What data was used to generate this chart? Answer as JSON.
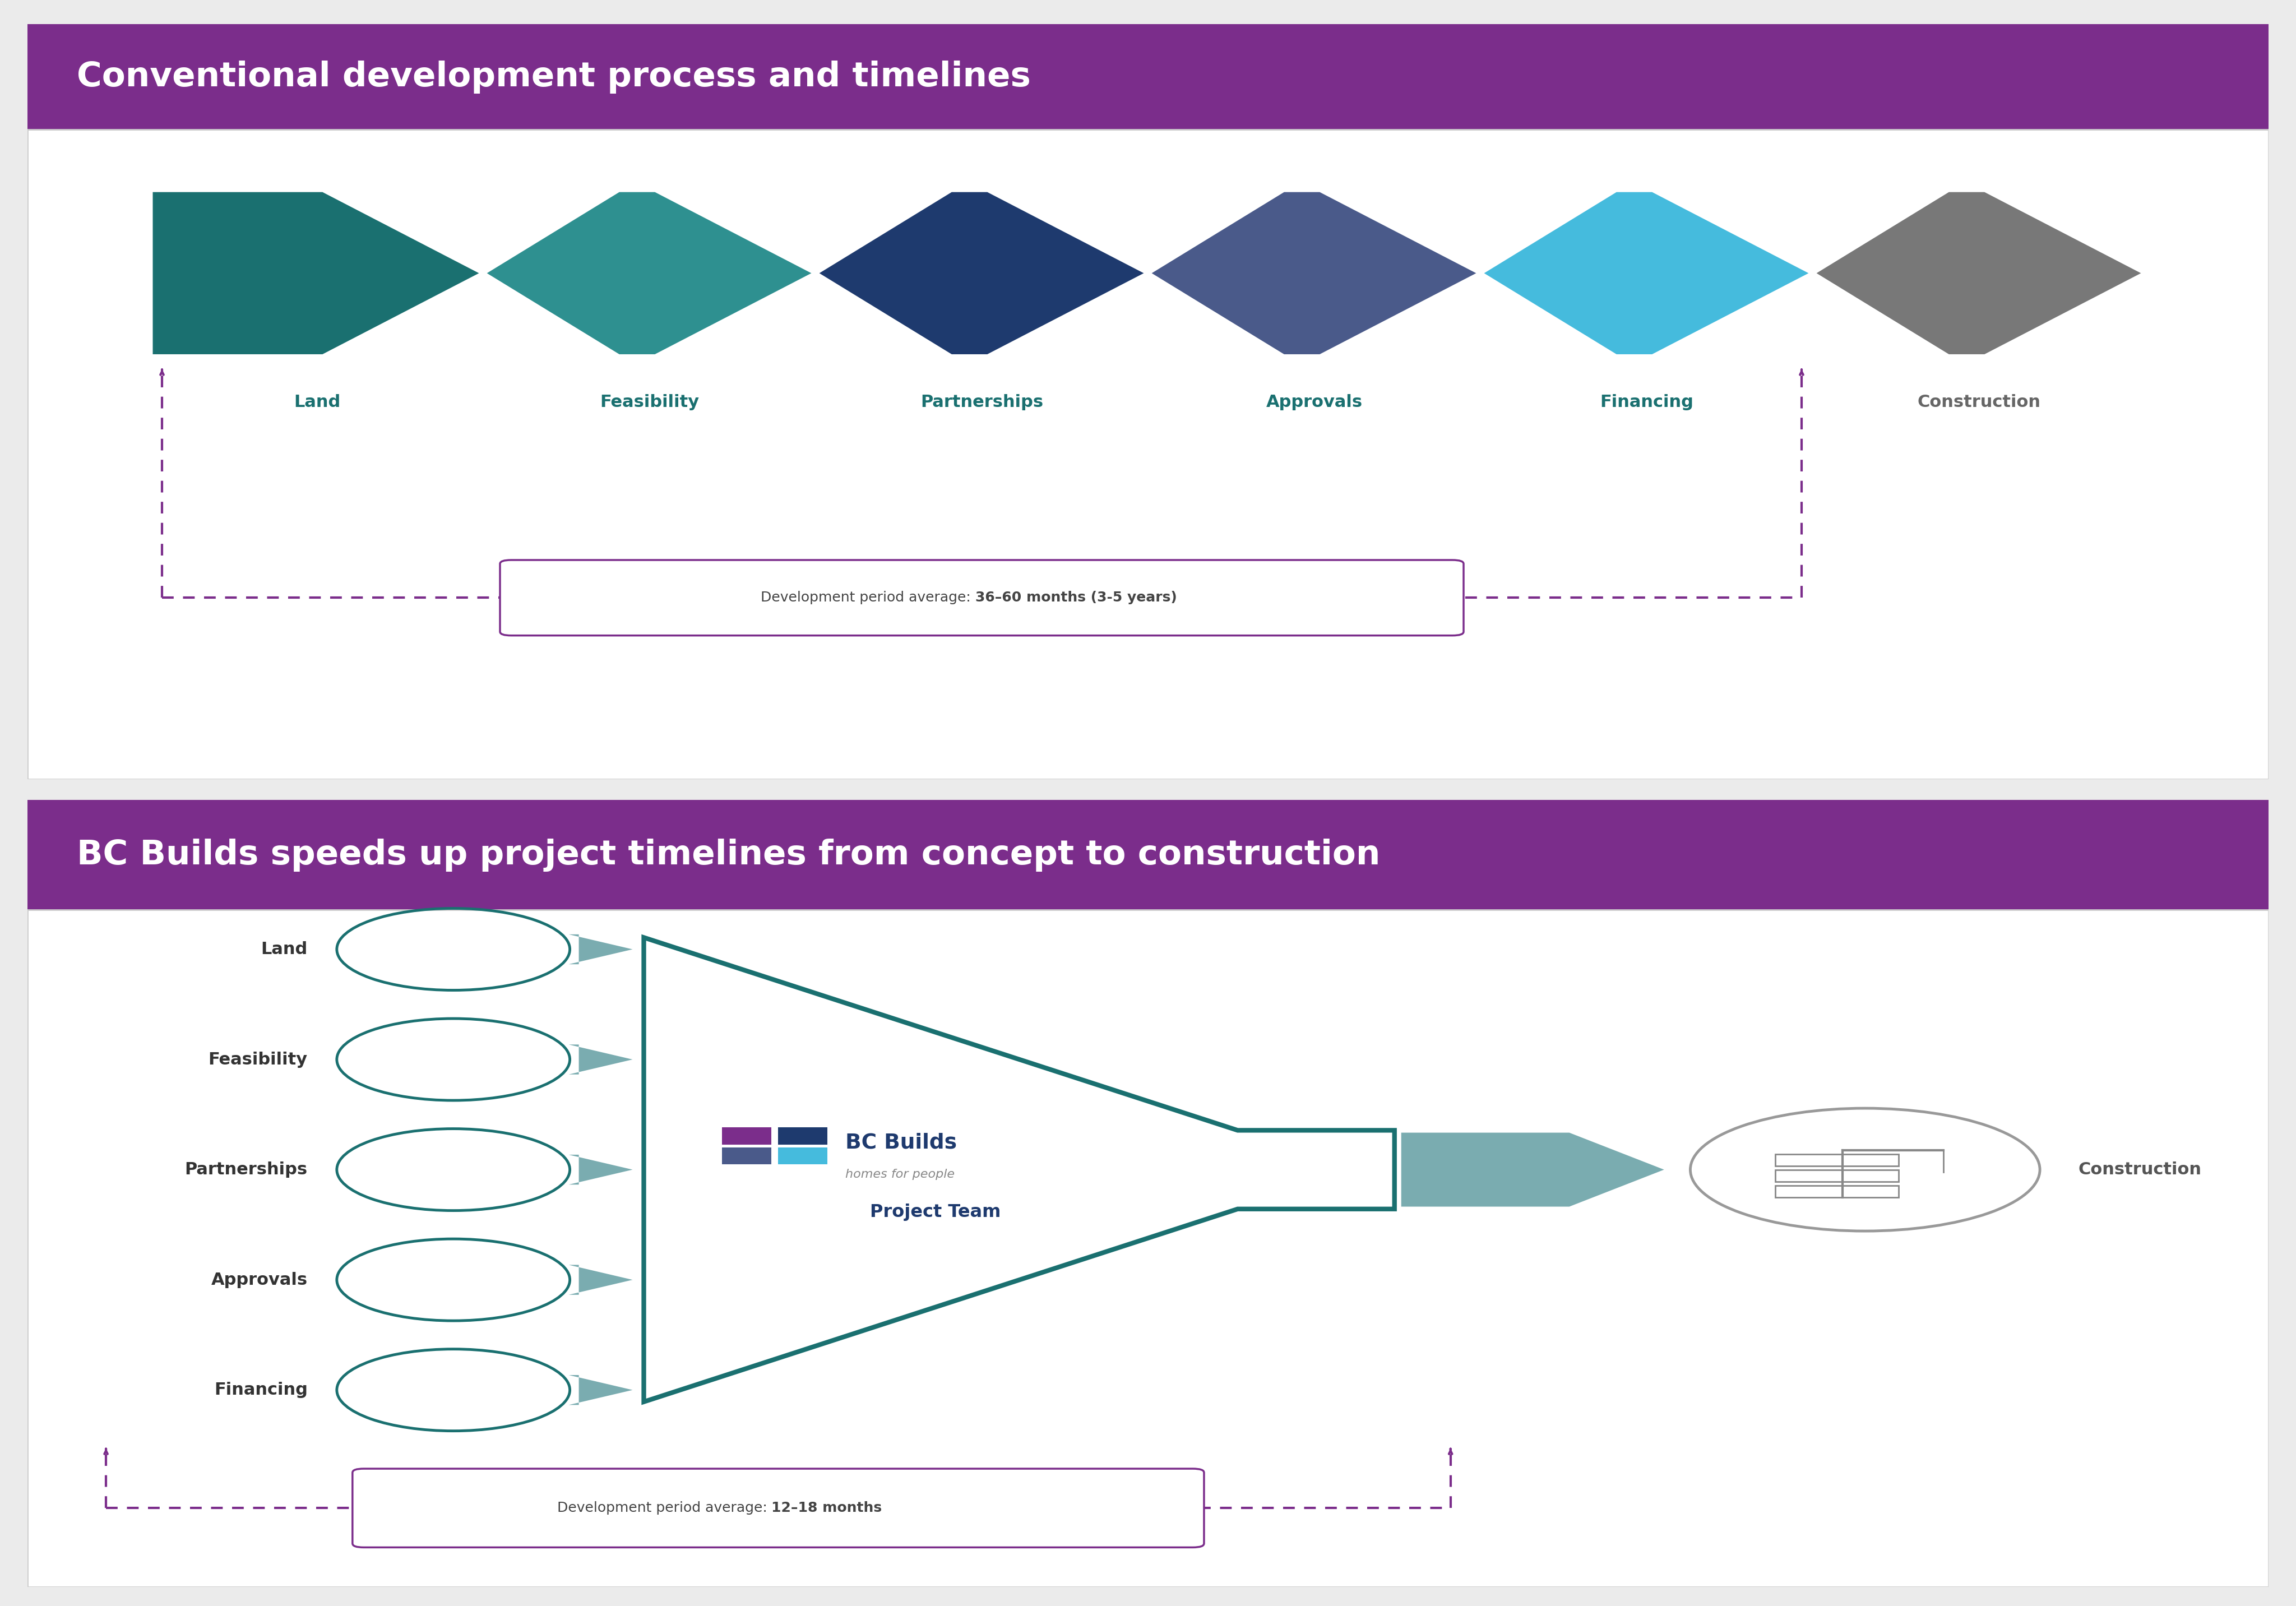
{
  "title1": "Conventional development process and timelines",
  "title2": "BC Builds speeds up project timelines from concept to construction",
  "purple": "#7B2D8B",
  "white": "#FFFFFF",
  "border_gray": "#CCCCCC",
  "teal_dark": "#1A7070",
  "teal_mid": "#2E9090",
  "navy": "#1E3A6E",
  "slate_blue": "#4A5A8A",
  "sky_blue": "#45BBDD",
  "gray_arrow": "#787878",
  "stage_label_teal": "#1A7070",
  "stage_label_gray": "#666666",
  "stages_conv": [
    "Land",
    "Feasibility",
    "Partnerships",
    "Approvals",
    "Financing",
    "Construction"
  ],
  "arrow_colors_conv": [
    "#1A7070",
    "#2E9090",
    "#1E3A6E",
    "#4A5A8A",
    "#45BBDD",
    "#787878"
  ],
  "dev_normal_conv": "Development period average: ",
  "dev_bold_conv": "36–60 months (3-5 years)",
  "dev_normal_bc": "Development period average: ",
  "dev_bold_bc": "12–18 months",
  "bc_stages": [
    "Land",
    "Feasibility",
    "Partnerships",
    "Approvals",
    "Financing"
  ],
  "logo_purple": "#7B2D8B",
  "logo_navy": "#1E3A6E",
  "logo_slate": "#4A5A8A",
  "logo_sky": "#45BBDD",
  "funnel_color": "#1A7070",
  "arrow_fill": "#7AACB0"
}
